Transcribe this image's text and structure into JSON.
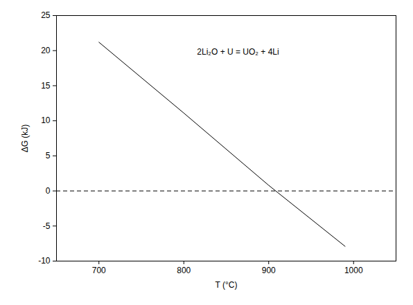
{
  "chart_data": {
    "type": "line",
    "x_label": "T (°C)",
    "y_label": "ΔG (kJ)",
    "annotation": "2Li₂O + U = UO₂ + 4Li",
    "x": [
      700,
      800,
      900,
      990
    ],
    "values": [
      21.2,
      11.1,
      0.8,
      -7.9
    ],
    "color": "#000000",
    "line_style": "solid",
    "reference_line": {
      "y": 0,
      "line_style": "dashed",
      "color": "#000000"
    },
    "xlim": [
      650,
      1050
    ],
    "xticks": [
      700,
      800,
      900,
      1000
    ],
    "ylim": [
      -10,
      25
    ],
    "yticks": [
      -10,
      -5,
      0,
      5,
      10,
      15,
      20,
      25
    ],
    "grid": false
  }
}
